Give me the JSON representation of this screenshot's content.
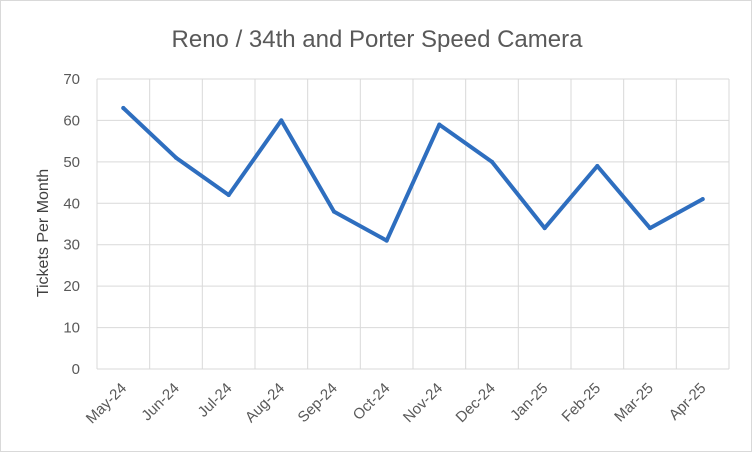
{
  "chart_data": {
    "type": "line",
    "title": "Reno / 34th and Porter Speed Camera",
    "xlabel": "",
    "ylabel": "Tickets Per Month",
    "categories": [
      "May-24",
      "Jun-24",
      "Jul-24",
      "Aug-24",
      "Sep-24",
      "Oct-24",
      "Nov-24",
      "Dec-24",
      "Jan-25",
      "Feb-25",
      "Mar-25",
      "Apr-25"
    ],
    "series": [
      {
        "values": [
          63,
          51,
          42,
          60,
          38,
          31,
          59,
          50,
          34,
          49,
          34,
          41
        ],
        "color": "#2e6ebf"
      }
    ],
    "ylim": [
      0,
      70
    ],
    "yticks": [
      "0",
      "10",
      "20",
      "30",
      "40",
      "50",
      "60",
      "70"
    ],
    "grid": true,
    "legend": "none"
  }
}
